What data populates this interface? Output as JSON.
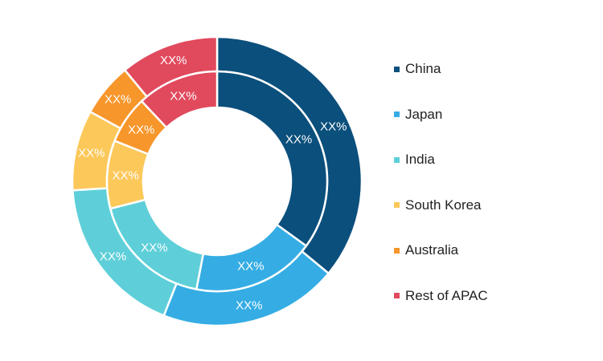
{
  "chart_data": {
    "type": "pie",
    "subtype": "double-donut",
    "categories": [
      "China",
      "Japan",
      "India",
      "South Korea",
      "Australia",
      "Rest of APAC"
    ],
    "colors": [
      "#0b4f7c",
      "#35ade4",
      "#5ecfd8",
      "#fcc85a",
      "#f7962b",
      "#e1495d"
    ],
    "legend": {
      "position": "right"
    },
    "rings": [
      {
        "ring": "outer",
        "values": [
          36,
          20,
          18,
          9,
          6,
          11
        ],
        "labels": [
          "XX%",
          "XX%",
          "XX%",
          "XX%",
          "XX%",
          "XX%"
        ]
      },
      {
        "ring": "inner",
        "values": [
          35,
          18,
          18,
          10,
          7,
          12
        ],
        "labels": [
          "XX%",
          "XX%",
          "XX%",
          "XX%",
          "XX%",
          "XX%"
        ]
      }
    ]
  }
}
